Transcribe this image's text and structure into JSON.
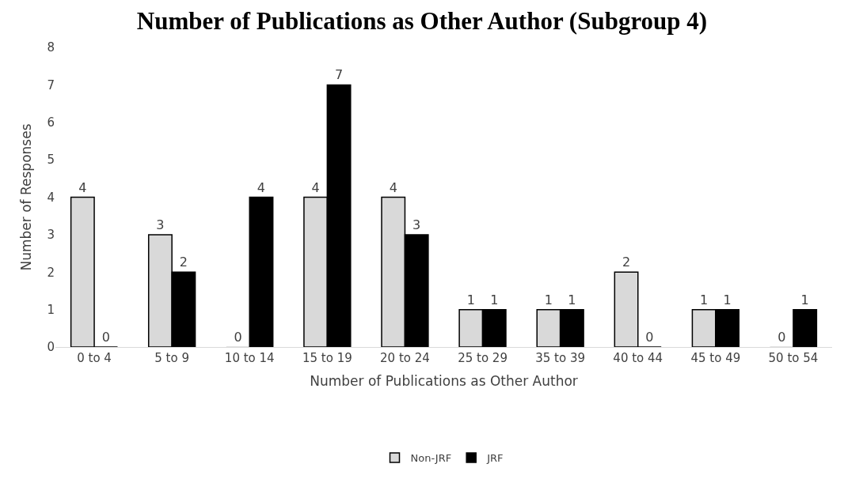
{
  "chart_data": {
    "type": "bar",
    "title": "Number of Publications as Other Author (Subgroup 4)",
    "xlabel": "Number of Publications as Other Author",
    "ylabel": "Number of Responses",
    "categories": [
      "0 to 4",
      "5 to 9",
      "10 to 14",
      "15 to 19",
      "20 to 24",
      "25 to 29",
      "35 to 39",
      "40 to 44",
      "45 to 49",
      "50 to 54"
    ],
    "series": [
      {
        "name": "Non-JRF",
        "color": "#d9d9d9",
        "values": [
          4,
          3,
          0,
          4,
          4,
          1,
          1,
          2,
          1,
          0
        ]
      },
      {
        "name": "JRF",
        "color": "#000000",
        "values": [
          0,
          2,
          4,
          7,
          3,
          1,
          1,
          0,
          1,
          1
        ]
      }
    ],
    "ylim": [
      0,
      8
    ],
    "yticks": [
      0,
      1,
      2,
      3,
      4,
      5,
      6,
      7,
      8
    ],
    "grid": false,
    "legend": "bottom",
    "data_labels": true
  }
}
